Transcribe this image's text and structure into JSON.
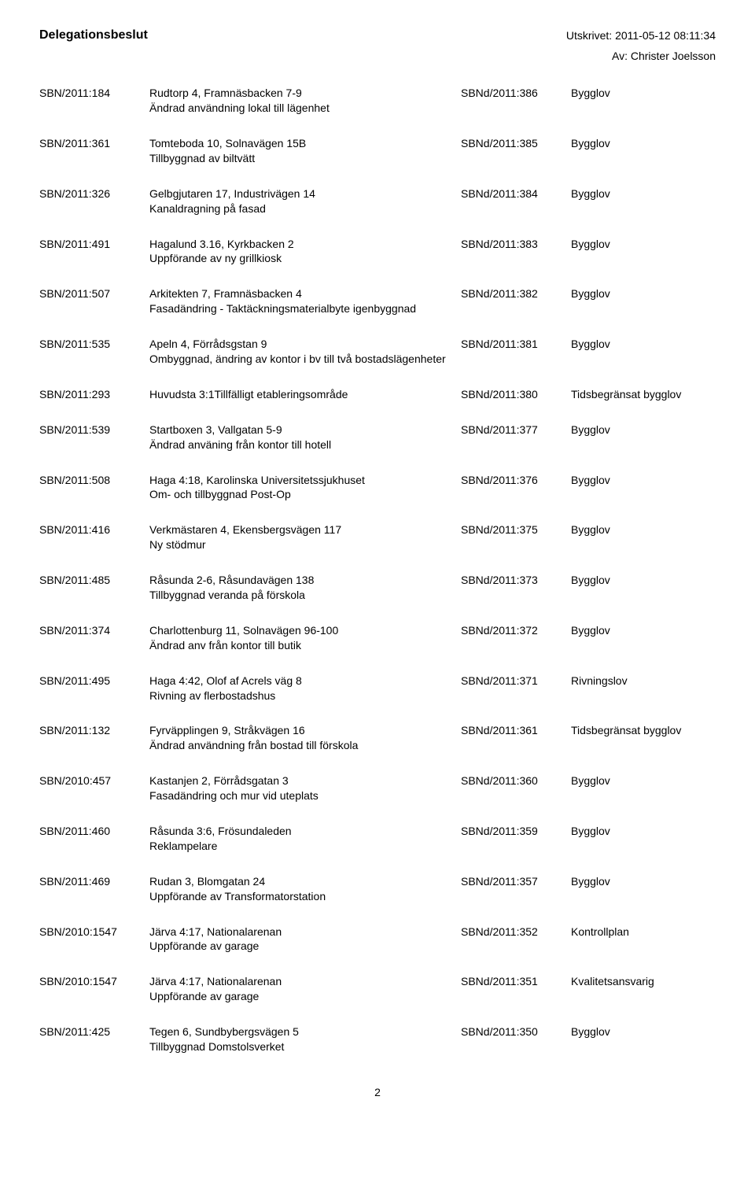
{
  "header": {
    "title": "Delegationsbeslut",
    "printed_label": "Utskrivet: 2011-05-12 08:11:34",
    "by_label": "Av: Christer Joelsson"
  },
  "page_number": "2",
  "entries": [
    {
      "id": "SBN/2011:184",
      "line1": "Rudtorp 4, Framnäsbacken 7-9",
      "line2": "Ändrad användning lokal till lägenhet",
      "ref": "SBNd/2011:386",
      "type": "Bygglov"
    },
    {
      "id": "SBN/2011:361",
      "line1": "Tomteboda 10, Solnavägen 15B",
      "line2": "Tillbyggnad av biltvätt",
      "ref": "SBNd/2011:385",
      "type": "Bygglov"
    },
    {
      "id": "SBN/2011:326",
      "line1": "Gelbgjutaren 17, Industrivägen 14",
      "line2": "Kanaldragning på fasad",
      "ref": "SBNd/2011:384",
      "type": "Bygglov"
    },
    {
      "id": "SBN/2011:491",
      "line1": "Hagalund 3.16, Kyrkbacken 2",
      "line2": "Uppförande av ny grillkiosk",
      "ref": "SBNd/2011:383",
      "type": "Bygglov"
    },
    {
      "id": "SBN/2011:507",
      "line1": "Arkitekten 7, Framnäsbacken 4",
      "line2": "Fasadändring - Taktäckningsmaterialbyte igenbyggnad",
      "ref": "SBNd/2011:382",
      "type": "Bygglov"
    },
    {
      "id": "SBN/2011:535",
      "line1": "Apeln 4, Förrådsgstan 9",
      "line2": "Ombyggnad, ändring av kontor i bv till två bostadslägenheter",
      "ref": "SBNd/2011:381",
      "type": "Bygglov"
    },
    {
      "id": "SBN/2011:293",
      "line1": "Huvudsta 3:1Tillfälligt etableringsområde",
      "line2": "",
      "ref": "SBNd/2011:380",
      "type": "Tidsbegränsat bygglov"
    },
    {
      "id": "SBN/2011:539",
      "line1": "Startboxen 3, Vallgatan 5-9",
      "line2": "Ändrad använing från kontor till hotell",
      "ref": "SBNd/2011:377",
      "type": "Bygglov"
    },
    {
      "id": "SBN/2011:508",
      "line1": "Haga 4:18, Karolinska Universitetssjukhuset",
      "line2": "Om- och tillbyggnad Post-Op",
      "ref": "SBNd/2011:376",
      "type": "Bygglov"
    },
    {
      "id": "SBN/2011:416",
      "line1": "Verkmästaren 4, Ekensbergsvägen 117",
      "line2": "Ny stödmur",
      "ref": "SBNd/2011:375",
      "type": "Bygglov"
    },
    {
      "id": "SBN/2011:485",
      "line1": "Råsunda 2-6, Råsundavägen 138",
      "line2": "Tillbyggnad veranda på förskola",
      "ref": "SBNd/2011:373",
      "type": "Bygglov"
    },
    {
      "id": "SBN/2011:374",
      "line1": "Charlottenburg 11, Solnavägen 96-100",
      "line2": "Ändrad anv från kontor till butik",
      "ref": "SBNd/2011:372",
      "type": "Bygglov"
    },
    {
      "id": "SBN/2011:495",
      "line1": "Haga 4:42, Olof af Acrels väg 8",
      "line2": "Rivning av flerbostadshus",
      "ref": "SBNd/2011:371",
      "type": "Rivningslov",
      "gap": true
    },
    {
      "id": "SBN/2011:132",
      "line1": "Fyrväpplingen 9, Stråkvägen 16",
      "line2": "Ändrad användning från bostad till förskola",
      "ref": "SBNd/2011:361",
      "type": "Tidsbegränsat bygglov",
      "gap": true
    },
    {
      "id": "SBN/2010:457",
      "line1": "Kastanjen 2, Förrådsgatan 3",
      "line2": "Fasadändring och mur vid uteplats",
      "ref": "SBNd/2011:360",
      "type": "Bygglov",
      "gap": true
    },
    {
      "id": "SBN/2011:460",
      "line1": "Råsunda 3:6, Frösundaleden",
      "line2": "Reklampelare",
      "ref": "SBNd/2011:359",
      "type": "Bygglov",
      "gap": true
    },
    {
      "id": "SBN/2011:469",
      "line1": "Rudan 3, Blomgatan 24",
      "line2": "Uppförande av Transformatorstation",
      "ref": "SBNd/2011:357",
      "type": "Bygglov",
      "gap": true
    },
    {
      "id": "SBN/2010:1547",
      "line1": "Järva 4:17, Nationalarenan",
      "line2": "Uppförande av garage",
      "ref": "SBNd/2011:352",
      "type": "Kontrollplan",
      "gap": true
    },
    {
      "id": "SBN/2010:1547",
      "line1": "Järva 4:17, Nationalarenan",
      "line2": "Uppförande av garage",
      "ref": "SBNd/2011:351",
      "type": "Kvalitetsansvarig",
      "gap": true
    },
    {
      "id": "SBN/2011:425",
      "line1": "Tegen 6, Sundbybergsvägen 5",
      "line2": "Tillbyggnad  Domstolsverket",
      "ref": "SBNd/2011:350",
      "type": "Bygglov",
      "gap": true
    }
  ]
}
